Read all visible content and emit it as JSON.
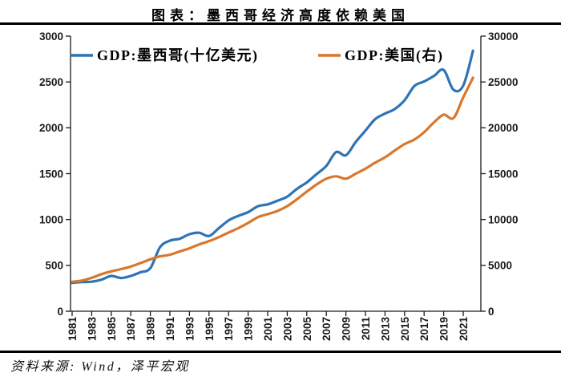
{
  "page": {
    "title": "图表：墨西哥经济高度依赖美国",
    "source": "资料来源: Wind，泽平宏观"
  },
  "colors": {
    "mexico_line": "#2E74B5",
    "us_line": "#D9772B",
    "axis": "#1a1a1a",
    "rule": "#000000"
  },
  "chart_data": {
    "type": "line",
    "title": "图表：墨西哥经济高度依赖美国",
    "legend_position": "top-inside",
    "grid": false,
    "x": [
      1981,
      1982,
      1983,
      1984,
      1985,
      1986,
      1987,
      1988,
      1989,
      1990,
      1991,
      1992,
      1993,
      1994,
      1995,
      1996,
      1997,
      1998,
      1999,
      2000,
      2001,
      2002,
      2003,
      2004,
      2005,
      2006,
      2007,
      2008,
      2009,
      2010,
      2011,
      2012,
      2013,
      2014,
      2015,
      2016,
      2017,
      2018,
      2019,
      2020,
      2021,
      2022
    ],
    "x_tick_labels": [
      "1981",
      "1983",
      "1985",
      "1987",
      "1989",
      "1991",
      "1993",
      "1995",
      "1997",
      "1999",
      "2001",
      "2003",
      "2005",
      "2007",
      "2009",
      "2011",
      "2013",
      "2015",
      "2017",
      "2019",
      "2021"
    ],
    "left_axis": {
      "min": 0,
      "max": 3000,
      "ticks": [
        0,
        500,
        1000,
        1500,
        2000,
        2500,
        3000
      ]
    },
    "right_axis": {
      "min": 0,
      "max": 30000,
      "ticks": [
        0,
        5000,
        10000,
        15000,
        20000,
        25000,
        30000
      ]
    },
    "series": [
      {
        "id": "mexico",
        "name": "GDP:墨西哥(十亿美元)",
        "axis": "left",
        "color": "#2E74B5",
        "values": [
          310,
          318,
          322,
          345,
          385,
          362,
          385,
          425,
          470,
          700,
          770,
          790,
          840,
          855,
          820,
          905,
          990,
          1040,
          1080,
          1145,
          1165,
          1205,
          1250,
          1335,
          1405,
          1495,
          1585,
          1735,
          1700,
          1845,
          1970,
          2095,
          2155,
          2205,
          2300,
          2455,
          2505,
          2565,
          2630,
          2415,
          2460,
          2840
        ]
      },
      {
        "id": "us",
        "name": "GDP:美国(右)",
        "axis": "right",
        "color": "#D9772B",
        "values": [
          3210,
          3345,
          3638,
          4041,
          4347,
          4590,
          4870,
          5253,
          5658,
          5980,
          6158,
          6520,
          6859,
          7287,
          7640,
          8073,
          8578,
          9063,
          9631,
          10251,
          10582,
          10936,
          11458,
          12214,
          13037,
          13815,
          14452,
          14713,
          14449,
          14992,
          15543,
          16197,
          16785,
          17527,
          18225,
          18715,
          19519,
          20580,
          21433,
          21060,
          23315,
          25464
        ]
      }
    ]
  }
}
